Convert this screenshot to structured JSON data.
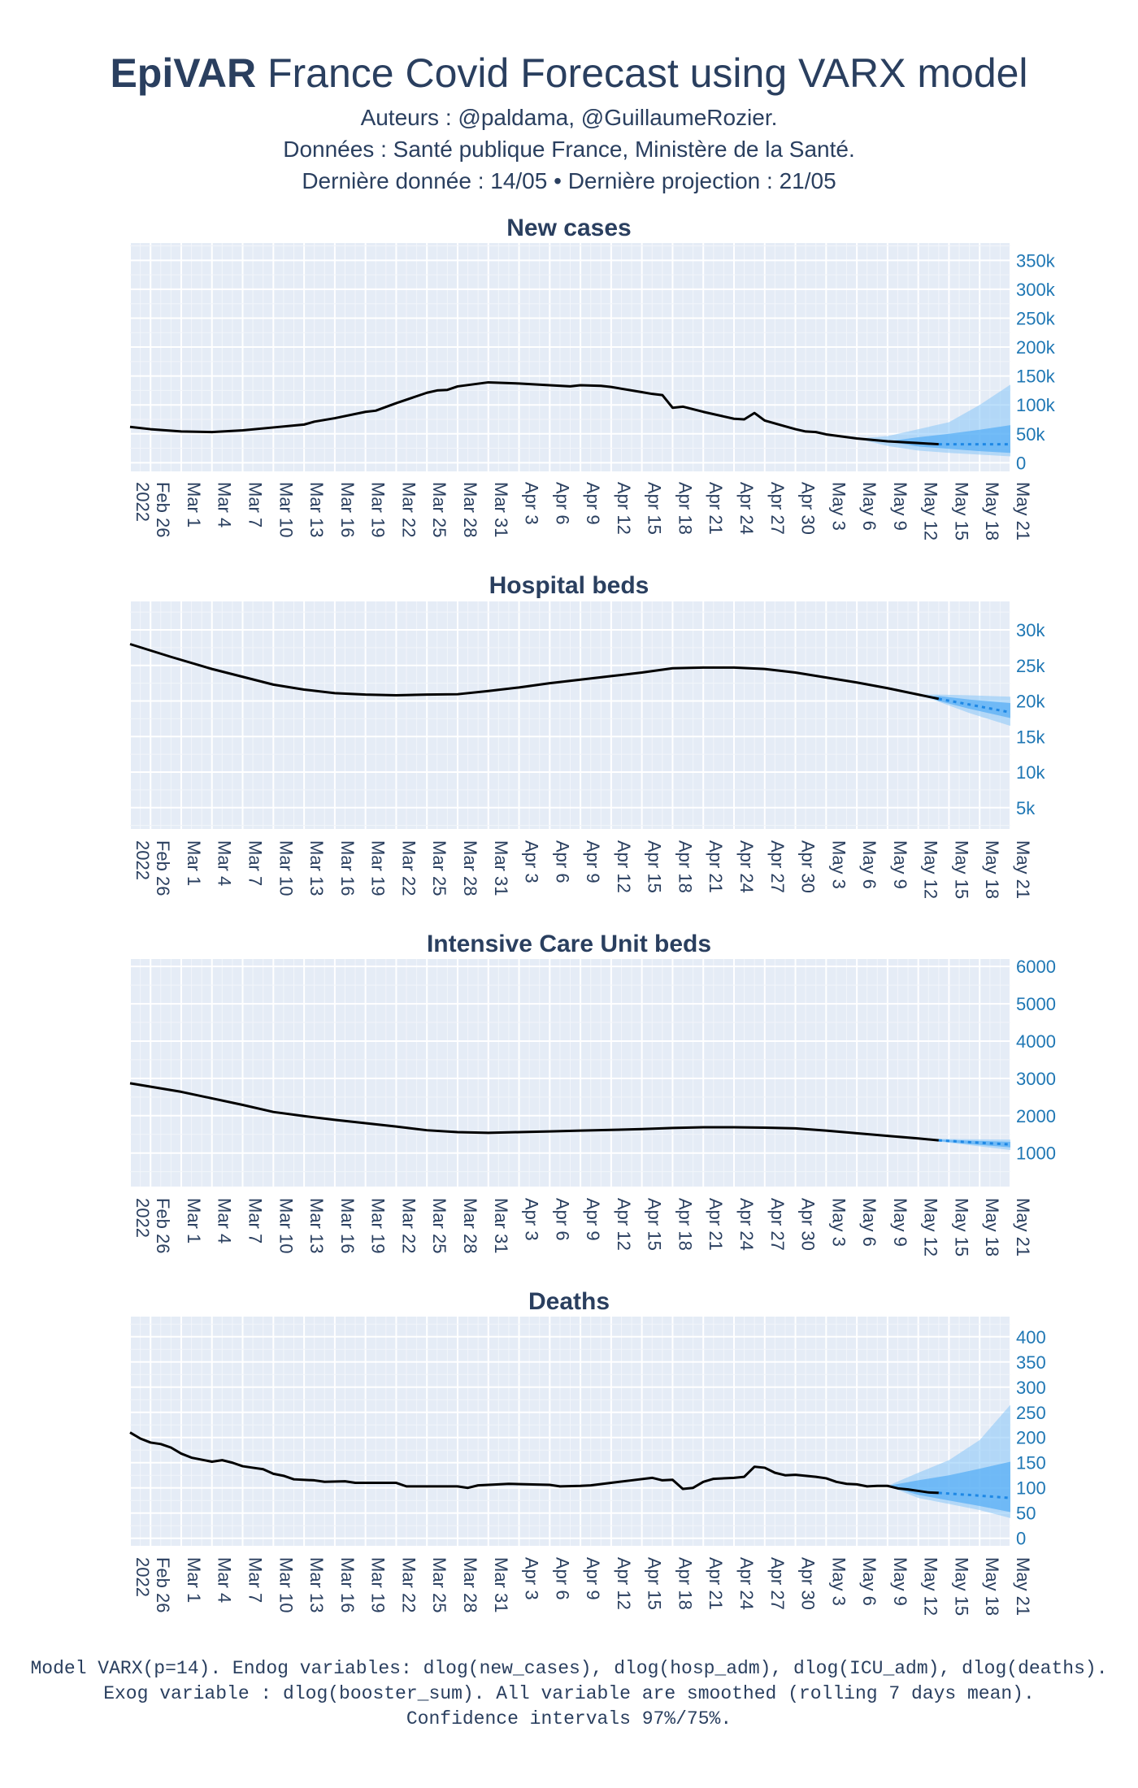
{
  "header": {
    "title_brand": "EpiVAR",
    "title_rest": " France Covid Forecast using VARX model",
    "authors": "Auteurs : @paldama, @GuillaumeRozier.",
    "sources": "Données : Santé publique France, Ministère de la Santé.",
    "dates": "Dernière donnée : 14/05 • Dernière projection : 21/05"
  },
  "footer": {
    "line1": "Model VARX(p=14). Endog variables: dlog(new_cases), dlog(hosp_adm), dlog(ICU_adm), dlog(deaths).",
    "line2": "Exog variable : dlog(booster_sum). All variable are smoothed (rolling 7 days mean).",
    "line3": "Confidence intervals 97%/75%."
  },
  "colors": {
    "plot_bg": "#e5ecf6",
    "grid": "#ffffff",
    "observed_line": "#000000",
    "forecast_line": "#1e88e5",
    "ci_outer": "#90caf9",
    "ci_inner": "#42a5f5",
    "ytick_color": "#1f77b4",
    "text": "#2a3f5f"
  },
  "x_axis": {
    "start_date": "2022-02-24",
    "end_date": "2022-05-21",
    "ticks": [
      {
        "date": "2022-02-24",
        "label": "2022"
      },
      {
        "date": "2022-02-26",
        "label": "Feb 26"
      },
      {
        "date": "2022-03-01",
        "label": "Mar 1"
      },
      {
        "date": "2022-03-04",
        "label": "Mar 4"
      },
      {
        "date": "2022-03-07",
        "label": "Mar 7"
      },
      {
        "date": "2022-03-10",
        "label": "Mar 10"
      },
      {
        "date": "2022-03-13",
        "label": "Mar 13"
      },
      {
        "date": "2022-03-16",
        "label": "Mar 16"
      },
      {
        "date": "2022-03-19",
        "label": "Mar 19"
      },
      {
        "date": "2022-03-22",
        "label": "Mar 22"
      },
      {
        "date": "2022-03-25",
        "label": "Mar 25"
      },
      {
        "date": "2022-03-28",
        "label": "Mar 28"
      },
      {
        "date": "2022-03-31",
        "label": "Mar 31"
      },
      {
        "date": "2022-04-03",
        "label": "Apr 3"
      },
      {
        "date": "2022-04-06",
        "label": "Apr 6"
      },
      {
        "date": "2022-04-09",
        "label": "Apr 9"
      },
      {
        "date": "2022-04-12",
        "label": "Apr 12"
      },
      {
        "date": "2022-04-15",
        "label": "Apr 15"
      },
      {
        "date": "2022-04-18",
        "label": "Apr 18"
      },
      {
        "date": "2022-04-21",
        "label": "Apr 21"
      },
      {
        "date": "2022-04-24",
        "label": "Apr 24"
      },
      {
        "date": "2022-04-27",
        "label": "Apr 27"
      },
      {
        "date": "2022-04-30",
        "label": "Apr 30"
      },
      {
        "date": "2022-05-03",
        "label": "May 3"
      },
      {
        "date": "2022-05-06",
        "label": "May 6"
      },
      {
        "date": "2022-05-09",
        "label": "May 9"
      },
      {
        "date": "2022-05-12",
        "label": "May 12"
      },
      {
        "date": "2022-05-15",
        "label": "May 15"
      },
      {
        "date": "2022-05-18",
        "label": "May 18"
      },
      {
        "date": "2022-05-21",
        "label": "May 21"
      }
    ]
  },
  "chart_data": [
    {
      "type": "line",
      "title": "New cases",
      "ylim": [
        -15000,
        380000
      ],
      "yticks": [
        0,
        50000,
        100000,
        150000,
        200000,
        250000,
        300000,
        350000
      ],
      "ytick_labels": [
        "0",
        "50k",
        "100k",
        "150k",
        "200k",
        "250k",
        "300k",
        "350k"
      ],
      "observed": [
        [
          "2022-02-24",
          62000
        ],
        [
          "2022-02-26",
          58000
        ],
        [
          "2022-03-01",
          54000
        ],
        [
          "2022-03-04",
          53000
        ],
        [
          "2022-03-07",
          56000
        ],
        [
          "2022-03-10",
          61000
        ],
        [
          "2022-03-13",
          66000
        ],
        [
          "2022-03-14",
          71000
        ],
        [
          "2022-03-16",
          77000
        ],
        [
          "2022-03-19",
          88000
        ],
        [
          "2022-03-20",
          90000
        ],
        [
          "2022-03-22",
          103000
        ],
        [
          "2022-03-25",
          121000
        ],
        [
          "2022-03-26",
          125000
        ],
        [
          "2022-03-27",
          126000
        ],
        [
          "2022-03-28",
          132000
        ],
        [
          "2022-03-31",
          139000
        ],
        [
          "2022-04-03",
          137000
        ],
        [
          "2022-04-06",
          134000
        ],
        [
          "2022-04-08",
          132000
        ],
        [
          "2022-04-09",
          134000
        ],
        [
          "2022-04-11",
          133000
        ],
        [
          "2022-04-12",
          131000
        ],
        [
          "2022-04-15",
          122000
        ],
        [
          "2022-04-16",
          119000
        ],
        [
          "2022-04-17",
          117000
        ],
        [
          "2022-04-18",
          95000
        ],
        [
          "2022-04-19",
          97000
        ],
        [
          "2022-04-21",
          88000
        ],
        [
          "2022-04-23",
          80000
        ],
        [
          "2022-04-24",
          76000
        ],
        [
          "2022-04-25",
          75000
        ],
        [
          "2022-04-26",
          86000
        ],
        [
          "2022-04-27",
          73000
        ],
        [
          "2022-04-29",
          63000
        ],
        [
          "2022-04-30",
          58000
        ],
        [
          "2022-05-01",
          54000
        ],
        [
          "2022-05-02",
          53000
        ],
        [
          "2022-05-03",
          49000
        ],
        [
          "2022-05-06",
          42000
        ],
        [
          "2022-05-09",
          37000
        ],
        [
          "2022-05-12",
          34000
        ],
        [
          "2022-05-14",
          32000
        ]
      ],
      "forecast": [
        [
          "2022-05-14",
          32000
        ],
        [
          "2022-05-16",
          32000
        ],
        [
          "2022-05-18",
          32000
        ],
        [
          "2022-05-21",
          32000
        ]
      ],
      "ci97": [
        [
          "2022-05-06",
          42000,
          42000
        ],
        [
          "2022-05-09",
          29000,
          46000
        ],
        [
          "2022-05-12",
          21000,
          58000
        ],
        [
          "2022-05-15",
          17000,
          70000
        ],
        [
          "2022-05-18",
          14000,
          100000
        ],
        [
          "2022-05-21",
          11000,
          135000
        ]
      ],
      "ci75": [
        [
          "2022-05-09",
          37000,
          37000
        ],
        [
          "2022-05-12",
          28000,
          44000
        ],
        [
          "2022-05-15",
          24000,
          50000
        ],
        [
          "2022-05-18",
          20000,
          57000
        ],
        [
          "2022-05-21",
          17000,
          65000
        ]
      ]
    },
    {
      "type": "line",
      "title": "Hospital beds",
      "ylim": [
        2000,
        34000
      ],
      "yticks": [
        5000,
        10000,
        15000,
        20000,
        25000,
        30000
      ],
      "ytick_labels": [
        "5k",
        "10k",
        "15k",
        "20k",
        "25k",
        "30k"
      ],
      "observed": [
        [
          "2022-02-24",
          28000
        ],
        [
          "2022-02-28",
          26200
        ],
        [
          "2022-03-04",
          24500
        ],
        [
          "2022-03-07",
          23400
        ],
        [
          "2022-03-10",
          22300
        ],
        [
          "2022-03-13",
          21600
        ],
        [
          "2022-03-16",
          21100
        ],
        [
          "2022-03-19",
          20900
        ],
        [
          "2022-03-22",
          20800
        ],
        [
          "2022-03-25",
          20900
        ],
        [
          "2022-03-28",
          20950
        ],
        [
          "2022-03-31",
          21400
        ],
        [
          "2022-04-03",
          21900
        ],
        [
          "2022-04-06",
          22500
        ],
        [
          "2022-04-09",
          23000
        ],
        [
          "2022-04-12",
          23500
        ],
        [
          "2022-04-15",
          24000
        ],
        [
          "2022-04-18",
          24600
        ],
        [
          "2022-04-21",
          24700
        ],
        [
          "2022-04-24",
          24700
        ],
        [
          "2022-04-27",
          24500
        ],
        [
          "2022-04-30",
          24000
        ],
        [
          "2022-05-03",
          23300
        ],
        [
          "2022-05-06",
          22600
        ],
        [
          "2022-05-09",
          21800
        ],
        [
          "2022-05-12",
          20900
        ],
        [
          "2022-05-14",
          20300
        ]
      ],
      "forecast": [
        [
          "2022-05-14",
          20300
        ],
        [
          "2022-05-17",
          19500
        ],
        [
          "2022-05-21",
          18400
        ]
      ],
      "ci97": [
        [
          "2022-05-12",
          20900,
          20900
        ],
        [
          "2022-05-14",
          19900,
          20900
        ],
        [
          "2022-05-17",
          18300,
          20800
        ],
        [
          "2022-05-21",
          16500,
          20600
        ]
      ],
      "ci75": [
        [
          "2022-05-13",
          20600,
          20600
        ],
        [
          "2022-05-14",
          20000,
          20700
        ],
        [
          "2022-05-17",
          18900,
          20200
        ],
        [
          "2022-05-21",
          17600,
          19700
        ]
      ]
    },
    {
      "type": "line",
      "title": "Intensive Care Unit beds",
      "ylim": [
        100,
        6200
      ],
      "yticks": [
        1000,
        2000,
        3000,
        4000,
        5000,
        6000
      ],
      "ytick_labels": [
        "1000",
        "2000",
        "3000",
        "4000",
        "5000",
        "6000"
      ],
      "observed": [
        [
          "2022-02-24",
          2870
        ],
        [
          "2022-03-01",
          2640
        ],
        [
          "2022-03-07",
          2290
        ],
        [
          "2022-03-10",
          2100
        ],
        [
          "2022-03-13",
          1990
        ],
        [
          "2022-03-16",
          1890
        ],
        [
          "2022-03-19",
          1800
        ],
        [
          "2022-03-22",
          1710
        ],
        [
          "2022-03-25",
          1610
        ],
        [
          "2022-03-28",
          1560
        ],
        [
          "2022-03-31",
          1540
        ],
        [
          "2022-04-03",
          1560
        ],
        [
          "2022-04-06",
          1580
        ],
        [
          "2022-04-09",
          1600
        ],
        [
          "2022-04-12",
          1620
        ],
        [
          "2022-04-15",
          1640
        ],
        [
          "2022-04-18",
          1670
        ],
        [
          "2022-04-21",
          1690
        ],
        [
          "2022-04-24",
          1690
        ],
        [
          "2022-04-27",
          1680
        ],
        [
          "2022-04-30",
          1660
        ],
        [
          "2022-05-03",
          1600
        ],
        [
          "2022-05-06",
          1530
        ],
        [
          "2022-05-09",
          1460
        ],
        [
          "2022-05-12",
          1390
        ],
        [
          "2022-05-14",
          1340
        ]
      ],
      "forecast": [
        [
          "2022-05-14",
          1340
        ],
        [
          "2022-05-17",
          1290
        ],
        [
          "2022-05-21",
          1230
        ]
      ],
      "ci97": [
        [
          "2022-05-13",
          1360,
          1360
        ],
        [
          "2022-05-14",
          1310,
          1380
        ],
        [
          "2022-05-17",
          1210,
          1370
        ],
        [
          "2022-05-21",
          1080,
          1360
        ]
      ],
      "ci75": [
        [
          "2022-05-14",
          1320,
          1360
        ],
        [
          "2022-05-17",
          1240,
          1330
        ],
        [
          "2022-05-21",
          1150,
          1300
        ]
      ]
    },
    {
      "type": "line",
      "title": "Deaths",
      "ylim": [
        -15,
        440
      ],
      "yticks": [
        0,
        50,
        100,
        150,
        200,
        250,
        300,
        350,
        400
      ],
      "ytick_labels": [
        "0",
        "50",
        "100",
        "150",
        "200",
        "250",
        "300",
        "350",
        "400"
      ],
      "observed": [
        [
          "2022-02-24",
          210
        ],
        [
          "2022-02-25",
          198
        ],
        [
          "2022-02-26",
          190
        ],
        [
          "2022-02-27",
          187
        ],
        [
          "2022-02-28",
          180
        ],
        [
          "2022-03-01",
          168
        ],
        [
          "2022-03-02",
          160
        ],
        [
          "2022-03-04",
          152
        ],
        [
          "2022-03-05",
          155
        ],
        [
          "2022-03-06",
          150
        ],
        [
          "2022-03-07",
          143
        ],
        [
          "2022-03-08",
          140
        ],
        [
          "2022-03-09",
          137
        ],
        [
          "2022-03-10",
          128
        ],
        [
          "2022-03-11",
          124
        ],
        [
          "2022-03-12",
          117
        ],
        [
          "2022-03-14",
          115
        ],
        [
          "2022-03-15",
          112
        ],
        [
          "2022-03-17",
          113
        ],
        [
          "2022-03-18",
          110
        ],
        [
          "2022-03-22",
          110
        ],
        [
          "2022-03-23",
          103
        ],
        [
          "2022-03-28",
          103
        ],
        [
          "2022-03-29",
          100
        ],
        [
          "2022-03-30",
          105
        ],
        [
          "2022-04-02",
          108
        ],
        [
          "2022-04-06",
          106
        ],
        [
          "2022-04-07",
          103
        ],
        [
          "2022-04-09",
          104
        ],
        [
          "2022-04-10",
          105
        ],
        [
          "2022-04-12",
          110
        ],
        [
          "2022-04-14",
          115
        ],
        [
          "2022-04-16",
          120
        ],
        [
          "2022-04-17",
          115
        ],
        [
          "2022-04-18",
          116
        ],
        [
          "2022-04-19",
          98
        ],
        [
          "2022-04-20",
          100
        ],
        [
          "2022-04-21",
          112
        ],
        [
          "2022-04-22",
          118
        ],
        [
          "2022-04-24",
          120
        ],
        [
          "2022-04-25",
          122
        ],
        [
          "2022-04-26",
          142
        ],
        [
          "2022-04-27",
          140
        ],
        [
          "2022-04-28",
          130
        ],
        [
          "2022-04-29",
          125
        ],
        [
          "2022-04-30",
          126
        ],
        [
          "2022-05-02",
          122
        ],
        [
          "2022-05-03",
          119
        ],
        [
          "2022-05-04",
          112
        ],
        [
          "2022-05-05",
          108
        ],
        [
          "2022-05-06",
          107
        ],
        [
          "2022-05-07",
          103
        ],
        [
          "2022-05-08",
          104
        ],
        [
          "2022-05-09",
          104
        ],
        [
          "2022-05-10",
          99
        ],
        [
          "2022-05-11",
          97
        ],
        [
          "2022-05-12",
          94
        ],
        [
          "2022-05-13",
          91
        ],
        [
          "2022-05-14",
          90
        ]
      ],
      "forecast": [
        [
          "2022-05-14",
          90
        ],
        [
          "2022-05-17",
          86
        ],
        [
          "2022-05-21",
          80
        ]
      ],
      "ci97": [
        [
          "2022-05-09",
          104,
          104
        ],
        [
          "2022-05-12",
          80,
          130
        ],
        [
          "2022-05-15",
          68,
          155
        ],
        [
          "2022-05-18",
          56,
          195
        ],
        [
          "2022-05-21",
          40,
          265
        ]
      ],
      "ci75": [
        [
          "2022-05-09",
          104,
          104
        ],
        [
          "2022-05-12",
          86,
          115
        ],
        [
          "2022-05-15",
          75,
          125
        ],
        [
          "2022-05-18",
          64,
          138
        ],
        [
          "2022-05-21",
          52,
          152
        ]
      ]
    }
  ]
}
